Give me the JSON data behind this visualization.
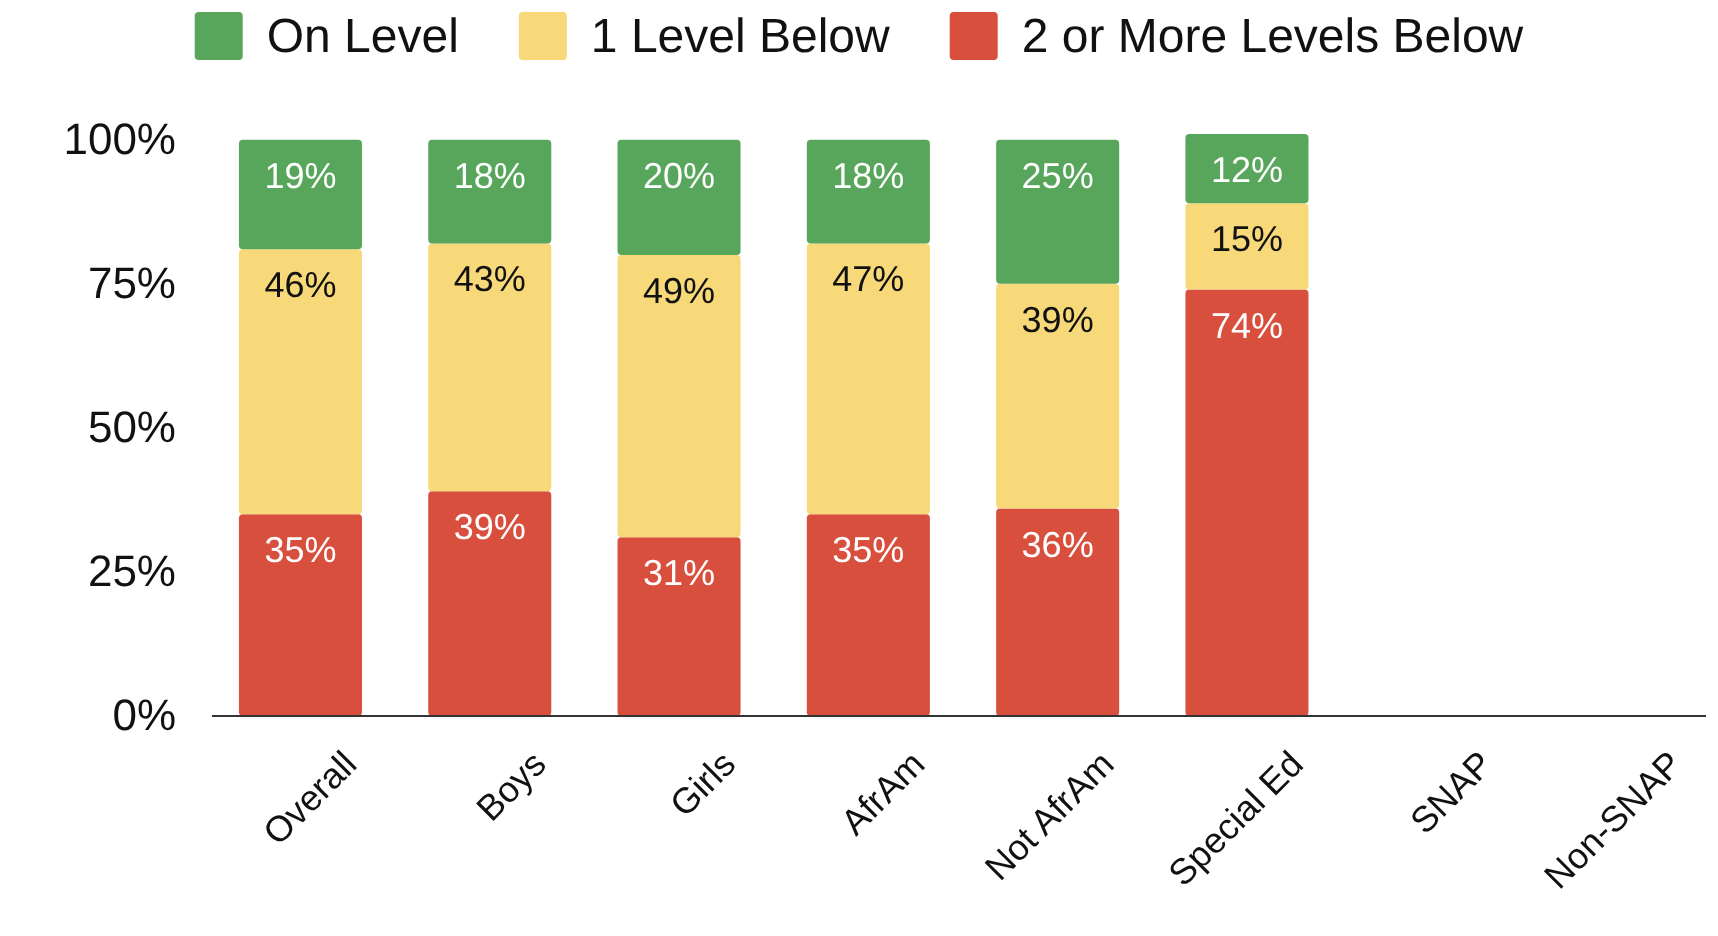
{
  "chart_data": {
    "type": "bar",
    "stacked": true,
    "legend": "top",
    "categories": [
      "Overall",
      "Boys",
      "Girls",
      "AfrAm",
      "Not AfrAm",
      "Special Ed",
      "SNAP",
      "Non-SNAP"
    ],
    "ylim": [
      0,
      101
    ],
    "yticks": [
      {
        "value": 0,
        "label": "0%"
      },
      {
        "value": 25,
        "label": "25%"
      },
      {
        "value": 50,
        "label": "50%"
      },
      {
        "value": 75,
        "label": "75%"
      },
      {
        "value": 100,
        "label": "100%"
      }
    ],
    "series": [
      {
        "name": "2 or More Levels Below",
        "color": "#d94f3d",
        "values": [
          35,
          39,
          31,
          35,
          36,
          74,
          null,
          null
        ],
        "value_labels": [
          "35%",
          "39%",
          "31%",
          "35%",
          "36%",
          "74%",
          null,
          null
        ]
      },
      {
        "name": "1 Level Below",
        "color": "#f7d97a",
        "values": [
          46,
          43,
          49,
          47,
          39,
          15,
          null,
          null
        ],
        "value_labels": [
          "46%",
          "43%",
          "49%",
          "47%",
          "39%",
          "15%",
          null,
          null
        ]
      },
      {
        "name": "On Level",
        "color": "#57a65b",
        "values": [
          19,
          18,
          20,
          18,
          25,
          12,
          null,
          null
        ],
        "value_labels": [
          "19%",
          "18%",
          "20%",
          "18%",
          "25%",
          "12%",
          null,
          null
        ]
      }
    ]
  }
}
